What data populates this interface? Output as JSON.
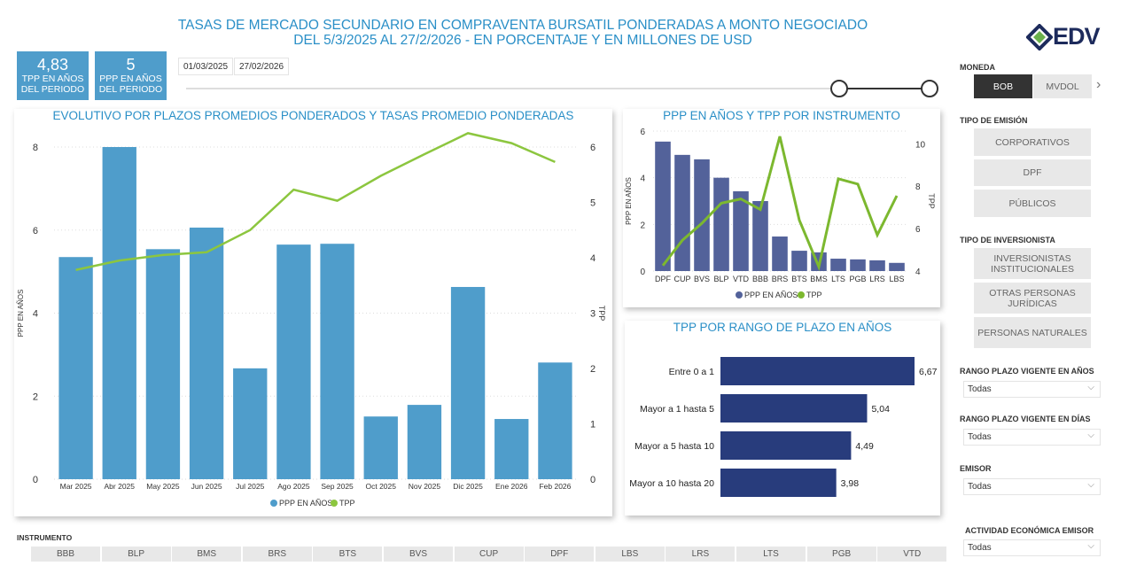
{
  "header": {
    "title_line1": "TASAS DE MERCADO SECUNDARIO EN COMPRAVENTA BURSATIL PONDERADAS A MONTO NEGOCIADO",
    "title_line2": "DEL 5/3/2025 AL 27/2/2026 - EN PORCENTAJE Y EN MILLONES DE USD",
    "logo": "EDV"
  },
  "kpis": [
    {
      "value": "4,83",
      "label": "TPP EN AÑOS DEL PERIODO"
    },
    {
      "value": "5",
      "label": "PPP EN AÑOS DEL PERIODO"
    }
  ],
  "date_range": {
    "start": "01/03/2025",
    "end": "27/02/2026"
  },
  "colors": {
    "bar_main": "#4f9dcb",
    "line": "#8cc63f",
    "bar_instr": "#53629a",
    "line_instr": "#7cb82f",
    "bar_range": "#283c7c"
  },
  "chart_data": [
    {
      "type": "bar",
      "title": "EVOLUTIVO POR PLAZOS PROMEDIOS PONDERADOS Y TASAS PROMEDIO PONDERADAS",
      "categories": [
        "Mar 2025",
        "Abr 2025",
        "May 2025",
        "Jun 2025",
        "Jul 2025",
        "Ago 2025",
        "Sep 2025",
        "Oct 2025",
        "Nov 2025",
        "Dic 2025",
        "Ene 2026",
        "Feb 2026"
      ],
      "series": [
        {
          "name": "PPP EN AÑOS",
          "type": "bar",
          "axis": "left",
          "values": [
            5.35,
            8.0,
            5.54,
            6.06,
            2.67,
            5.65,
            5.67,
            1.51,
            1.79,
            4.63,
            1.45,
            2.81
          ]
        },
        {
          "name": "TPP",
          "type": "line",
          "axis": "right",
          "values": [
            3.78,
            3.95,
            4.05,
            4.1,
            4.5,
            5.23,
            5.03,
            5.48,
            5.87,
            6.25,
            6.07,
            5.73
          ]
        }
      ],
      "ylabel": "PPP EN AÑOS",
      "y2label": "TPP",
      "ylim": [
        0,
        8
      ],
      "y2lim": [
        0,
        6
      ],
      "yticks": [
        "0",
        "2",
        "4",
        "6",
        "8"
      ],
      "y2ticks": [
        "0",
        "1",
        "2",
        "3",
        "4",
        "5",
        "6"
      ],
      "legend": "bottom"
    },
    {
      "type": "bar",
      "title": "PPP EN AÑOS Y TPP POR INSTRUMENTO",
      "categories": [
        "DPF",
        "CUP",
        "BVS",
        "BLP",
        "VTD",
        "BBB",
        "BRS",
        "BTS",
        "BMS",
        "LTS",
        "PGB",
        "LRS",
        "LBS"
      ],
      "series": [
        {
          "name": "PPP EN AÑOS",
          "type": "bar",
          "axis": "left",
          "values": [
            5.55,
            4.98,
            4.79,
            4.0,
            3.42,
            3.0,
            1.48,
            0.87,
            0.8,
            0.53,
            0.5,
            0.46,
            0.35
          ]
        },
        {
          "name": "TPP",
          "type": "line",
          "axis": "right",
          "values": [
            4.26,
            5.45,
            6.25,
            7.2,
            7.4,
            6.9,
            10.35,
            6.4,
            4.2,
            8.35,
            8.1,
            5.7,
            7.55
          ]
        }
      ],
      "ylabel": "PPP EN AÑOS",
      "y2label": "TPP",
      "ylim": [
        0,
        6
      ],
      "y2lim": [
        4,
        10.6
      ],
      "yticks": [
        "0",
        "2",
        "4",
        "6"
      ],
      "y2ticks": [
        "4",
        "6",
        "8",
        "10"
      ],
      "legend": "bottom"
    },
    {
      "type": "bar",
      "orientation": "horizontal",
      "title": "TPP POR RANGO DE PLAZO EN AÑOS",
      "categories": [
        "Entre 0 a 1",
        "Mayor a 1 hasta 5",
        "Mayor a 5 hasta 10",
        "Mayor a 10 hasta 20"
      ],
      "values": [
        6.67,
        5.04,
        4.49,
        3.98
      ],
      "labels": [
        "6,67",
        "5,04",
        "4,49",
        "3,98"
      ],
      "xlim": [
        0,
        6.67
      ]
    }
  ],
  "filters": {
    "moneda": {
      "label": "MONEDA",
      "options": [
        "BOB",
        "MVDOL"
      ],
      "selected": "BOB"
    },
    "tipo_emision": {
      "label": "TIPO DE EMISIÓN",
      "options": [
        "CORPORATIVOS",
        "DPF",
        "PÚBLICOS"
      ]
    },
    "tipo_inversionista": {
      "label": "TIPO DE INVERSIONISTA",
      "options": [
        "INVERSIONISTAS INSTITUCIONALES",
        "OTRAS PERSONAS JURÍDICAS",
        "PERSONAS NATURALES"
      ]
    },
    "rango_anios": {
      "label": "RANGO PLAZO VIGENTE EN AÑOS",
      "value": "Todas"
    },
    "rango_dias": {
      "label": "RANGO PLAZO VIGENTE EN DÍAS",
      "value": "Todas"
    },
    "emisor": {
      "label": "EMISOR",
      "value": "Todas"
    },
    "actividad": {
      "label": "ACTIVIDAD ECONÓMICA EMISOR",
      "value": "Todas"
    }
  },
  "instrumento": {
    "label": "INSTRUMENTO",
    "options": [
      "BBB",
      "BLP",
      "BMS",
      "BRS",
      "BTS",
      "BVS",
      "CUP",
      "DPF",
      "LBS",
      "LRS",
      "LTS",
      "PGB",
      "VTD"
    ]
  }
}
